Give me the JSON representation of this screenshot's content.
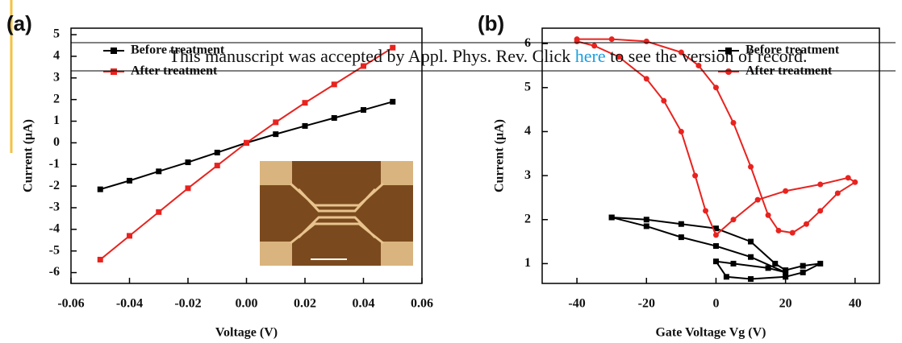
{
  "chart_data": [
    {
      "type": "line",
      "label": "(a)",
      "xlabel": "Voltage (V)",
      "ylabel": "Current (μA)",
      "x": [
        -0.05,
        -0.04,
        -0.03,
        -0.02,
        -0.01,
        0,
        0.01,
        0.02,
        0.03,
        0.04,
        0.05
      ],
      "series": [
        {
          "name": "Before treatment",
          "color": "#000000",
          "marker": "square",
          "values": [
            -2.15,
            -1.75,
            -1.32,
            -0.9,
            -0.45,
            0,
            0.4,
            0.78,
            1.15,
            1.52,
            1.9
          ]
        },
        {
          "name": "After treatment",
          "color": "#e8231f",
          "marker": "square",
          "values": [
            -5.4,
            -4.3,
            -3.2,
            -2.1,
            -1.05,
            0,
            0.95,
            1.85,
            2.7,
            3.55,
            4.4
          ]
        }
      ],
      "xlim": [
        -0.06,
        0.06
      ],
      "xticks": [
        -0.06,
        -0.04,
        -0.02,
        {
          "value": 0,
          "label": "0.00"
        },
        0.02,
        0.04,
        0.06
      ],
      "ylim": [
        -6.5,
        5.3
      ],
      "yticks": [
        -6,
        -5,
        -4,
        -3,
        -2,
        -1,
        0,
        1,
        2,
        3,
        4,
        5
      ],
      "legend": "upper left"
    },
    {
      "type": "line",
      "label": "(b)",
      "xlabel": "Gate Voltage Vg (V)",
      "ylabel": "Current (μA)",
      "series": [
        {
          "name": "Before treatment",
          "color": "#000000",
          "marker": "square",
          "x": [
            -30,
            -20,
            -10,
            0,
            10,
            17,
            20,
            25,
            30,
            25,
            20,
            10,
            3,
            0,
            5,
            15,
            20,
            10,
            0,
            -10,
            -20,
            -30
          ],
          "values": [
            2.05,
            2.0,
            1.9,
            1.8,
            1.5,
            1.0,
            0.85,
            0.95,
            1.0,
            0.8,
            0.7,
            0.65,
            0.7,
            1.05,
            1.0,
            0.9,
            0.8,
            1.15,
            1.4,
            1.6,
            1.85,
            2.05
          ]
        },
        {
          "name": "After treatment",
          "color": "#e8231f",
          "marker": "circle",
          "x": [
            -40,
            -30,
            -20,
            -10,
            -5,
            0,
            5,
            10,
            15,
            18,
            22,
            26,
            30,
            35,
            40,
            38,
            30,
            20,
            12,
            5,
            0,
            -3,
            -6,
            -10,
            -15,
            -20,
            -28,
            -35,
            -40
          ],
          "values": [
            6.1,
            6.1,
            6.05,
            5.8,
            5.5,
            5.0,
            4.2,
            3.2,
            2.1,
            1.75,
            1.7,
            1.9,
            2.2,
            2.6,
            2.85,
            2.95,
            2.8,
            2.65,
            2.45,
            2.0,
            1.65,
            2.2,
            3.0,
            4.0,
            4.7,
            5.2,
            5.7,
            5.95,
            6.05
          ]
        }
      ],
      "xlim": [
        -50,
        47
      ],
      "xticks": [
        -40,
        -20,
        0,
        20,
        40
      ],
      "ylim": [
        0.55,
        6.35
      ],
      "yticks": [
        1,
        2,
        3,
        4,
        5,
        6
      ],
      "legend": "upper right"
    }
  ],
  "banner": {
    "before": "This manuscript was accepted by Appl. Phys. Rev. Click",
    "link": "here",
    "after": "to see the version of record."
  }
}
